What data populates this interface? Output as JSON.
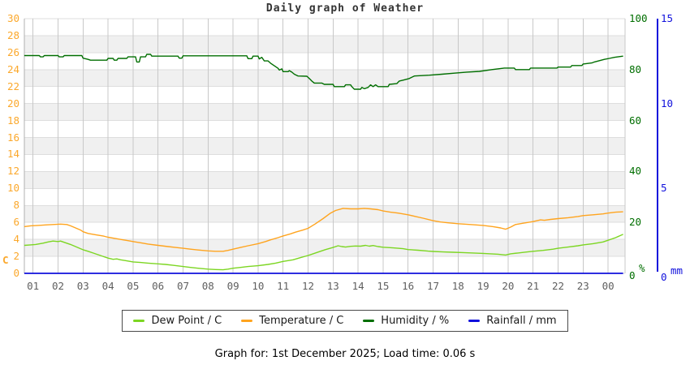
{
  "title": {
    "text": "Daily graph of Weather"
  },
  "footer": {
    "text": "Graph for: 1st December 2025; Load time: 0.06 s"
  },
  "colors": {
    "dew_point": "#7cd622",
    "temperature": "#ffa41e",
    "humidity": "#006e00",
    "rainfall": "#1010dc",
    "left_axis_label": "#fba82c",
    "x_axis_label": "#5f5f5f",
    "humidity_axis_label": "#006e00",
    "rainfall_axis_label": "#1010dc",
    "band_gray": "#f0f0f0",
    "grid_vertical": "#c8c8c8",
    "grid_horizontal": "#dedede",
    "axis_line": "#b0b0b0",
    "title_color": "#333333"
  },
  "legend": {
    "items": [
      {
        "key": "dew_point",
        "label": "Dew Point / C"
      },
      {
        "key": "temperature",
        "label": "Temperature / C"
      },
      {
        "key": "humidity",
        "label": "Humidity / %"
      },
      {
        "key": "rainfall",
        "label": "Rainfall / mm"
      }
    ]
  },
  "chart_data": {
    "type": "line",
    "title": "Daily graph of Weather",
    "x_axis": {
      "unit": "hour of day",
      "tick_labels": [
        "01",
        "02",
        "03",
        "04",
        "05",
        "06",
        "07",
        "08",
        "09",
        "10",
        "11",
        "12",
        "13",
        "14",
        "15",
        "16",
        "17",
        "18",
        "19",
        "20",
        "21",
        "22",
        "23",
        "00"
      ],
      "range_hours": [
        0.65,
        24.68
      ]
    },
    "y_axes": {
      "left": {
        "unit": "C",
        "range": [
          0,
          30
        ],
        "ticks": [
          0,
          2,
          4,
          6,
          8,
          10,
          12,
          14,
          16,
          18,
          20,
          22,
          24,
          26,
          28,
          30
        ],
        "side": "left"
      },
      "humidity": {
        "unit": "%",
        "range": [
          0,
          100
        ],
        "ticks": [
          0,
          20,
          40,
          60,
          80,
          100
        ],
        "side": "right"
      },
      "rainfall": {
        "unit": "mm",
        "range": [
          0,
          15
        ],
        "ticks": [
          0,
          5,
          10,
          15
        ],
        "side": "far-right"
      }
    },
    "background": "alternating white and light-gray bands every 2 left-axis units",
    "legend_position": "bottom",
    "series": [
      {
        "name": "Dew Point / C",
        "key": "dew_point",
        "axis": "left",
        "points": [
          [
            0.65,
            3.3
          ],
          [
            0.9,
            3.35
          ],
          [
            1.1,
            3.4
          ],
          [
            1.4,
            3.55
          ],
          [
            1.6,
            3.7
          ],
          [
            1.8,
            3.8
          ],
          [
            2.0,
            3.75
          ],
          [
            2.1,
            3.8
          ],
          [
            2.3,
            3.6
          ],
          [
            2.5,
            3.4
          ],
          [
            2.7,
            3.15
          ],
          [
            2.9,
            2.9
          ],
          [
            3.0,
            2.78
          ],
          [
            3.2,
            2.6
          ],
          [
            3.4,
            2.4
          ],
          [
            3.6,
            2.2
          ],
          [
            3.8,
            2.0
          ],
          [
            4.0,
            1.8
          ],
          [
            4.2,
            1.65
          ],
          [
            4.35,
            1.7
          ],
          [
            4.5,
            1.6
          ],
          [
            4.7,
            1.5
          ],
          [
            5.0,
            1.35
          ],
          [
            5.3,
            1.28
          ],
          [
            5.6,
            1.2
          ],
          [
            6.0,
            1.12
          ],
          [
            6.3,
            1.05
          ],
          [
            6.6,
            0.95
          ],
          [
            7.0,
            0.8
          ],
          [
            7.3,
            0.7
          ],
          [
            7.6,
            0.6
          ],
          [
            8.0,
            0.5
          ],
          [
            8.3,
            0.45
          ],
          [
            8.6,
            0.42
          ],
          [
            8.8,
            0.5
          ],
          [
            9.0,
            0.6
          ],
          [
            9.3,
            0.7
          ],
          [
            9.6,
            0.8
          ],
          [
            10.0,
            0.9
          ],
          [
            10.4,
            1.05
          ],
          [
            10.7,
            1.2
          ],
          [
            11.0,
            1.4
          ],
          [
            11.4,
            1.6
          ],
          [
            11.7,
            1.85
          ],
          [
            12.0,
            2.1
          ],
          [
            12.4,
            2.5
          ],
          [
            12.7,
            2.8
          ],
          [
            13.0,
            3.05
          ],
          [
            13.2,
            3.25
          ],
          [
            13.35,
            3.15
          ],
          [
            13.5,
            3.1
          ],
          [
            13.7,
            3.18
          ],
          [
            13.9,
            3.22
          ],
          [
            14.1,
            3.2
          ],
          [
            14.3,
            3.3
          ],
          [
            14.45,
            3.2
          ],
          [
            14.6,
            3.28
          ],
          [
            14.8,
            3.15
          ],
          [
            15.0,
            3.08
          ],
          [
            15.4,
            3.0
          ],
          [
            15.8,
            2.9
          ],
          [
            16.0,
            2.8
          ],
          [
            16.4,
            2.72
          ],
          [
            16.8,
            2.62
          ],
          [
            17.0,
            2.58
          ],
          [
            17.4,
            2.52
          ],
          [
            17.8,
            2.48
          ],
          [
            18.2,
            2.45
          ],
          [
            18.6,
            2.4
          ],
          [
            19.0,
            2.35
          ],
          [
            19.3,
            2.3
          ],
          [
            19.6,
            2.25
          ],
          [
            19.9,
            2.16
          ],
          [
            20.1,
            2.3
          ],
          [
            20.4,
            2.4
          ],
          [
            20.7,
            2.5
          ],
          [
            21.0,
            2.6
          ],
          [
            21.4,
            2.7
          ],
          [
            21.8,
            2.85
          ],
          [
            22.0,
            2.95
          ],
          [
            22.4,
            3.1
          ],
          [
            22.8,
            3.25
          ],
          [
            23.0,
            3.35
          ],
          [
            23.4,
            3.5
          ],
          [
            23.8,
            3.7
          ],
          [
            24.0,
            3.9
          ],
          [
            24.3,
            4.2
          ],
          [
            24.6,
            4.6
          ]
        ]
      },
      {
        "name": "Temperature / C",
        "key": "temperature",
        "axis": "left",
        "points": [
          [
            0.65,
            5.5
          ],
          [
            0.9,
            5.6
          ],
          [
            1.2,
            5.65
          ],
          [
            1.5,
            5.7
          ],
          [
            1.8,
            5.75
          ],
          [
            2.1,
            5.8
          ],
          [
            2.35,
            5.75
          ],
          [
            2.5,
            5.6
          ],
          [
            2.7,
            5.35
          ],
          [
            2.9,
            5.1
          ],
          [
            3.0,
            4.9
          ],
          [
            3.2,
            4.7
          ],
          [
            3.5,
            4.55
          ],
          [
            3.8,
            4.4
          ],
          [
            4.0,
            4.25
          ],
          [
            4.3,
            4.1
          ],
          [
            4.6,
            3.95
          ],
          [
            4.8,
            3.85
          ],
          [
            5.0,
            3.75
          ],
          [
            5.3,
            3.6
          ],
          [
            5.6,
            3.45
          ],
          [
            6.0,
            3.3
          ],
          [
            6.4,
            3.15
          ],
          [
            6.7,
            3.05
          ],
          [
            7.0,
            2.95
          ],
          [
            7.3,
            2.85
          ],
          [
            7.6,
            2.75
          ],
          [
            8.0,
            2.65
          ],
          [
            8.3,
            2.6
          ],
          [
            8.6,
            2.6
          ],
          [
            8.8,
            2.7
          ],
          [
            9.0,
            2.85
          ],
          [
            9.3,
            3.05
          ],
          [
            9.6,
            3.25
          ],
          [
            10.0,
            3.5
          ],
          [
            10.3,
            3.75
          ],
          [
            10.5,
            3.95
          ],
          [
            10.8,
            4.2
          ],
          [
            11.0,
            4.4
          ],
          [
            11.3,
            4.65
          ],
          [
            11.5,
            4.85
          ],
          [
            11.8,
            5.1
          ],
          [
            12.0,
            5.3
          ],
          [
            12.3,
            5.85
          ],
          [
            12.6,
            6.45
          ],
          [
            12.9,
            7.1
          ],
          [
            13.1,
            7.4
          ],
          [
            13.4,
            7.65
          ],
          [
            13.7,
            7.6
          ],
          [
            14.0,
            7.6
          ],
          [
            14.25,
            7.65
          ],
          [
            14.5,
            7.6
          ],
          [
            14.8,
            7.5
          ],
          [
            15.0,
            7.35
          ],
          [
            15.3,
            7.2
          ],
          [
            15.6,
            7.1
          ],
          [
            16.0,
            6.9
          ],
          [
            16.3,
            6.7
          ],
          [
            16.6,
            6.5
          ],
          [
            17.0,
            6.2
          ],
          [
            17.3,
            6.05
          ],
          [
            17.6,
            5.95
          ],
          [
            18.0,
            5.85
          ],
          [
            18.5,
            5.75
          ],
          [
            19.0,
            5.65
          ],
          [
            19.4,
            5.5
          ],
          [
            19.7,
            5.35
          ],
          [
            19.9,
            5.2
          ],
          [
            20.1,
            5.45
          ],
          [
            20.3,
            5.75
          ],
          [
            20.6,
            5.9
          ],
          [
            21.0,
            6.1
          ],
          [
            21.3,
            6.3
          ],
          [
            21.45,
            6.25
          ],
          [
            21.7,
            6.35
          ],
          [
            22.0,
            6.45
          ],
          [
            22.4,
            6.55
          ],
          [
            22.8,
            6.7
          ],
          [
            23.0,
            6.8
          ],
          [
            23.4,
            6.9
          ],
          [
            23.8,
            7.0
          ],
          [
            24.0,
            7.1
          ],
          [
            24.3,
            7.2
          ],
          [
            24.6,
            7.25
          ]
        ]
      },
      {
        "name": "Humidity / %",
        "key": "humidity",
        "axis": "humidity",
        "points": [
          [
            0.65,
            85.5
          ],
          [
            1.25,
            85.5
          ],
          [
            1.3,
            85
          ],
          [
            1.4,
            85
          ],
          [
            1.45,
            85.5
          ],
          [
            2.0,
            85.5
          ],
          [
            2.05,
            85
          ],
          [
            2.2,
            85
          ],
          [
            2.25,
            85.5
          ],
          [
            2.95,
            85.5
          ],
          [
            3.0,
            84.5
          ],
          [
            3.2,
            84
          ],
          [
            3.3,
            83.7
          ],
          [
            3.95,
            83.7
          ],
          [
            4.0,
            84.4
          ],
          [
            4.2,
            84.4
          ],
          [
            4.25,
            83.7
          ],
          [
            4.35,
            83.7
          ],
          [
            4.4,
            84.4
          ],
          [
            4.75,
            84.4
          ],
          [
            4.8,
            85
          ],
          [
            5.1,
            85
          ],
          [
            5.15,
            83
          ],
          [
            5.25,
            83
          ],
          [
            5.3,
            85
          ],
          [
            5.5,
            85
          ],
          [
            5.55,
            86
          ],
          [
            5.7,
            86
          ],
          [
            5.75,
            85.3
          ],
          [
            6.8,
            85.3
          ],
          [
            6.85,
            84.5
          ],
          [
            6.95,
            84.5
          ],
          [
            7.0,
            85.4
          ],
          [
            9.55,
            85.4
          ],
          [
            9.6,
            84.3
          ],
          [
            9.75,
            84.3
          ],
          [
            9.8,
            85.3
          ],
          [
            10.0,
            85.3
          ],
          [
            10.05,
            84.2
          ],
          [
            10.15,
            84.8
          ],
          [
            10.25,
            83.4
          ],
          [
            10.4,
            83.4
          ],
          [
            10.5,
            82.5
          ],
          [
            10.65,
            81.5
          ],
          [
            10.8,
            80.5
          ],
          [
            10.85,
            79.8
          ],
          [
            10.95,
            80.3
          ],
          [
            11.0,
            79.2
          ],
          [
            11.2,
            79.2
          ],
          [
            11.25,
            79.6
          ],
          [
            11.35,
            79
          ],
          [
            11.45,
            78.2
          ],
          [
            11.6,
            77.5
          ],
          [
            11.95,
            77.4
          ],
          [
            12.05,
            76.5
          ],
          [
            12.15,
            75.5
          ],
          [
            12.25,
            74.7
          ],
          [
            12.55,
            74.7
          ],
          [
            12.65,
            74.2
          ],
          [
            13.0,
            74.2
          ],
          [
            13.05,
            73.3
          ],
          [
            13.45,
            73.3
          ],
          [
            13.5,
            74
          ],
          [
            13.7,
            74
          ],
          [
            13.75,
            73.3
          ],
          [
            13.85,
            72.3
          ],
          [
            14.1,
            72.3
          ],
          [
            14.15,
            73
          ],
          [
            14.25,
            72.5
          ],
          [
            14.4,
            73
          ],
          [
            14.5,
            74
          ],
          [
            14.6,
            73.3
          ],
          [
            14.7,
            74
          ],
          [
            14.8,
            73.3
          ],
          [
            15.2,
            73.3
          ],
          [
            15.25,
            74.2
          ],
          [
            15.55,
            74.5
          ],
          [
            15.65,
            75.5
          ],
          [
            15.85,
            76
          ],
          [
            16.05,
            76.5
          ],
          [
            16.25,
            77.5
          ],
          [
            16.85,
            77.8
          ],
          [
            17.35,
            78.2
          ],
          [
            17.85,
            78.6
          ],
          [
            18.35,
            79
          ],
          [
            18.85,
            79.3
          ],
          [
            19.35,
            80
          ],
          [
            19.85,
            80.6
          ],
          [
            20.25,
            80.6
          ],
          [
            20.3,
            80
          ],
          [
            20.85,
            80
          ],
          [
            20.9,
            80.6
          ],
          [
            21.95,
            80.6
          ],
          [
            22.0,
            81
          ],
          [
            22.5,
            81
          ],
          [
            22.55,
            81.6
          ],
          [
            22.95,
            81.6
          ],
          [
            23.0,
            82.2
          ],
          [
            23.35,
            82.6
          ],
          [
            23.45,
            83
          ],
          [
            23.85,
            84
          ],
          [
            24.05,
            84.4
          ],
          [
            24.25,
            84.8
          ],
          [
            24.45,
            85.1
          ],
          [
            24.6,
            85.3
          ]
        ]
      },
      {
        "name": "Rainfall / mm",
        "key": "rainfall",
        "axis": "rainfall",
        "points": [
          [
            0.65,
            0
          ],
          [
            24.6,
            0
          ]
        ]
      }
    ]
  }
}
